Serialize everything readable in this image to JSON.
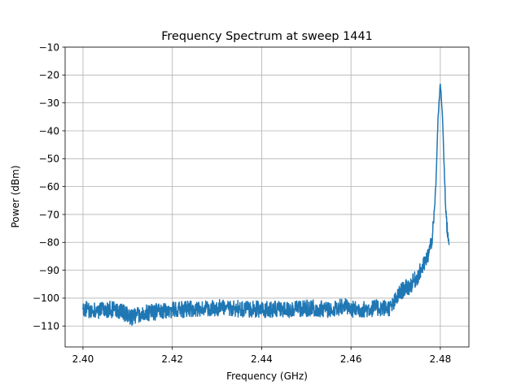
{
  "chart_data": {
    "type": "line",
    "title": "Frequency Spectrum at sweep 1441",
    "xlabel": "Frequency (GHz)",
    "ylabel": "Power (dBm)",
    "xlim": [
      2.396,
      2.4864
    ],
    "ylim": [
      -117.5,
      -10
    ],
    "xticks": [
      2.4,
      2.42,
      2.44,
      2.46,
      2.48
    ],
    "xtick_labels": [
      "2.40",
      "2.42",
      "2.44",
      "2.46",
      "2.48"
    ],
    "yticks": [
      -110,
      -100,
      -90,
      -80,
      -70,
      -60,
      -50,
      -40,
      -30,
      -20,
      -10
    ],
    "ytick_labels": [
      "−110",
      "−100",
      "−90",
      "−80",
      "−70",
      "−60",
      "−50",
      "−40",
      "−30",
      "−20",
      "−10"
    ],
    "grid": true,
    "series": [
      {
        "color": "#1f77b4",
        "x": [
          2.4,
          2.403,
          2.406,
          2.409,
          2.411,
          2.413,
          2.416,
          2.419,
          2.421,
          2.424,
          2.427,
          2.43,
          2.433,
          2.436,
          2.439,
          2.442,
          2.445,
          2.448,
          2.451,
          2.454,
          2.457,
          2.458,
          2.46,
          2.463,
          2.466,
          2.469,
          2.471,
          2.472,
          2.473,
          2.474,
          2.475,
          2.476,
          2.477,
          2.478,
          2.4785,
          2.479,
          2.4795,
          2.48,
          2.4805,
          2.481,
          2.4815,
          2.482
        ],
        "y": [
          -104,
          -104.5,
          -104,
          -105,
          -107,
          -105.5,
          -105,
          -104.5,
          -104,
          -104,
          -104,
          -103.5,
          -103.5,
          -104,
          -104,
          -104,
          -104,
          -104,
          -103.5,
          -104,
          -104,
          -102.5,
          -104,
          -104,
          -103.5,
          -103.5,
          -98,
          -96.5,
          -96,
          -94,
          -92,
          -89,
          -86,
          -80,
          -74,
          -60,
          -35,
          -23,
          -35,
          -60,
          -75,
          -80
        ]
      }
    ]
  }
}
